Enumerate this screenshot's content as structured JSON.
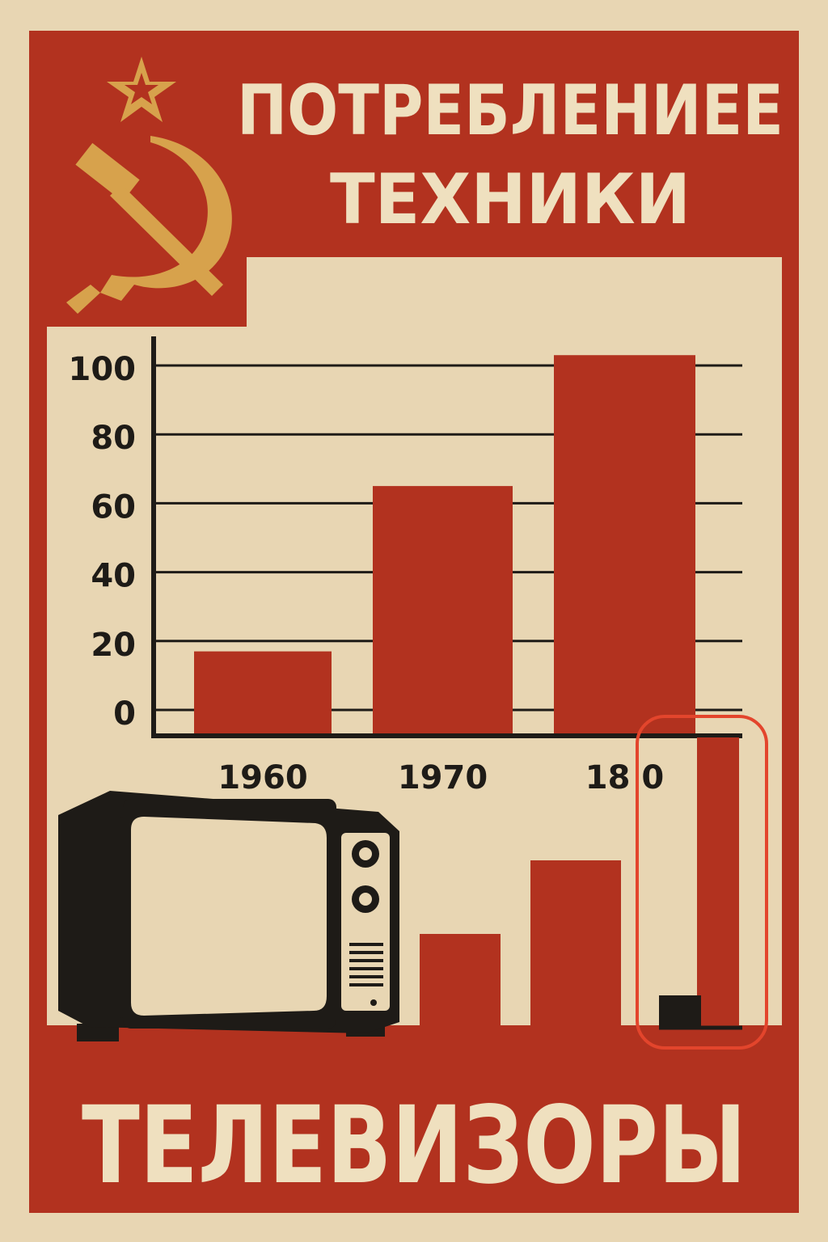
{
  "poster": {
    "title_line1": "ПОТРЕБЛЕНИЕЕ",
    "title_line2": "ТЕХНИКИ",
    "bottom_label": "ТЕЛЕВИЗОРЫ"
  },
  "colors": {
    "paper": "#e8d6b3",
    "red": "#b2321f",
    "cream": "#efe0bf",
    "ink": "#1e1b17",
    "gold": "#d7a24c",
    "highlight": "#e3452c"
  },
  "icons": [
    "star-icon",
    "hammer-sickle-icon",
    "television-icon"
  ],
  "chart_data": {
    "type": "bar",
    "categories": [
      "1960",
      "1970",
      "18 0",
      ""
    ],
    "values": [
      17,
      65,
      103,
      0
    ],
    "ylim": [
      0,
      100
    ],
    "yticks": [
      0,
      20,
      40,
      60,
      80,
      100
    ],
    "grid": true,
    "title": "",
    "xlabel": "",
    "ylabel": ""
  }
}
